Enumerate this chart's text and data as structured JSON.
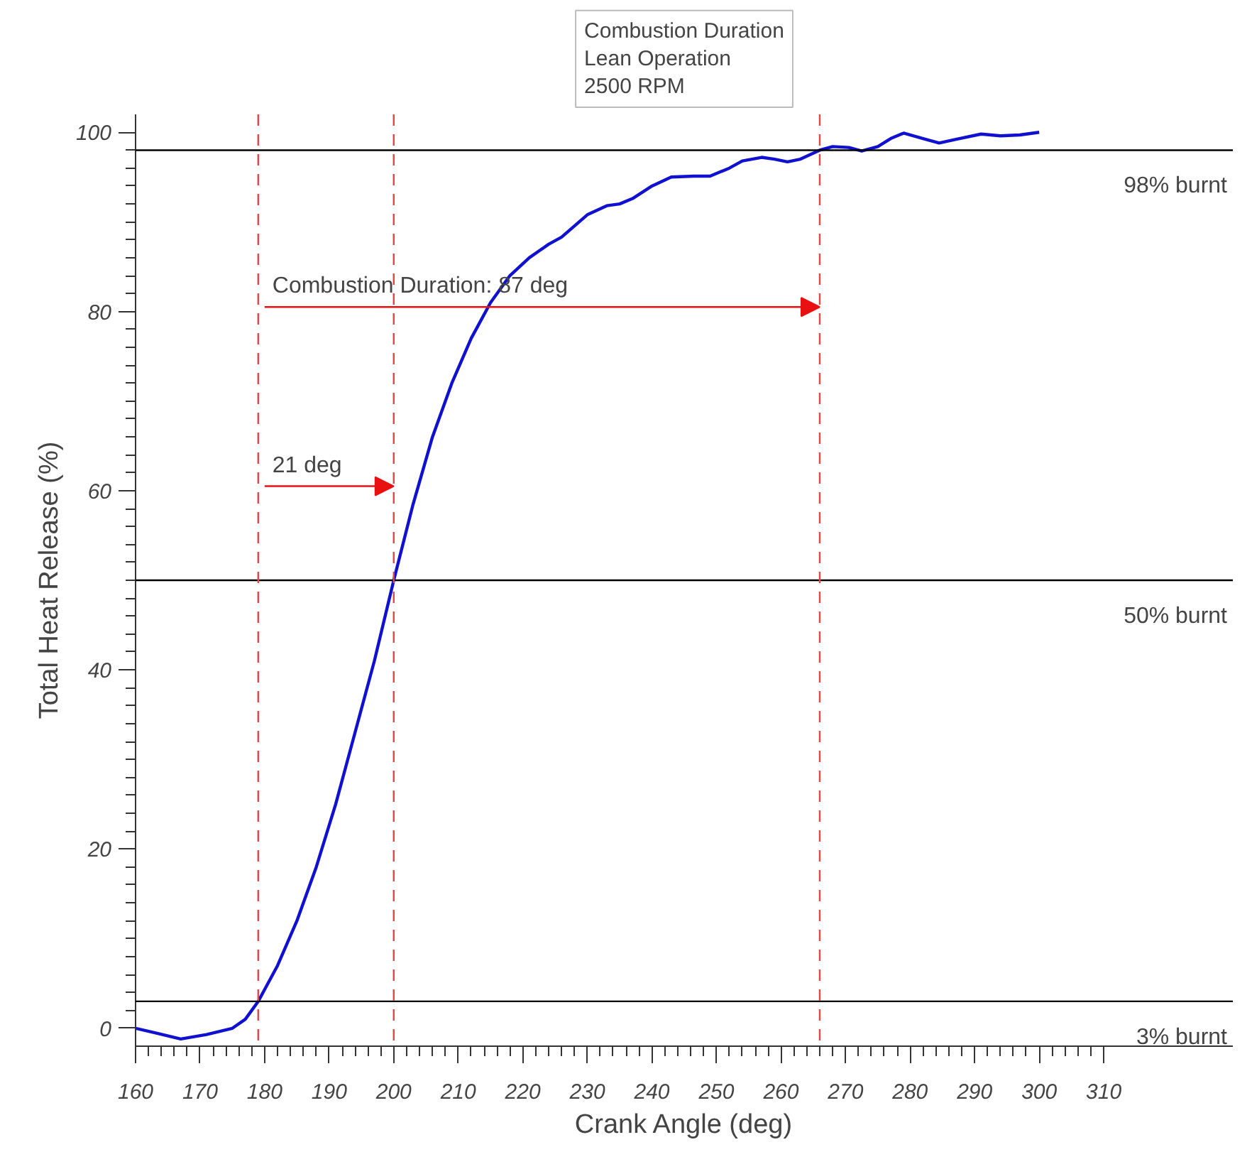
{
  "chart_data": {
    "type": "line",
    "title": "Combustion Duration\nLean Operation\n2500 RPM",
    "xlabel": "Crank Angle (deg)",
    "ylabel": "Total Heat Release (%)",
    "x": [
      160,
      163,
      167,
      171,
      175,
      177,
      179,
      182,
      185,
      188,
      191,
      194,
      197,
      200,
      203,
      206,
      209,
      212,
      215,
      218,
      221,
      224,
      226,
      230,
      233,
      235,
      237,
      240,
      243,
      246.5,
      249,
      252,
      254,
      257,
      259,
      261,
      263,
      266,
      268,
      270.5,
      272.5,
      275,
      277,
      279,
      282,
      284.5,
      287,
      291,
      294,
      297,
      300
    ],
    "series": [
      {
        "color": "#1010d0",
        "values": [
          0,
          -0.5,
          -1.2,
          -0.7,
          0,
          1,
          3,
          7,
          12,
          18,
          25,
          33,
          41,
          50,
          58.5,
          66,
          72,
          77,
          81,
          84,
          86,
          87.5,
          88.3,
          90.8,
          91.8,
          92,
          92.6,
          94,
          95,
          95.1,
          95.1,
          96,
          96.8,
          97.2,
          97,
          96.7,
          97,
          98,
          98.4,
          98.3,
          97.9,
          98.4,
          99.3,
          99.9,
          99.3,
          98.8,
          99.2,
          99.8,
          99.6,
          99.7,
          100
        ]
      }
    ],
    "xlim": [
      160,
      330
    ],
    "ylim": [
      -2,
      102
    ],
    "xticks": [
      160,
      170,
      180,
      190,
      200,
      210,
      220,
      230,
      240,
      250,
      260,
      270,
      280,
      290,
      300,
      310
    ],
    "yticks": [
      0,
      20,
      40,
      60,
      80,
      100
    ],
    "grid": false,
    "marker": "none",
    "line_style": "solid",
    "ref_lines": [
      {
        "axis": "y",
        "value": 98,
        "label": "98% burnt",
        "color": "#000000",
        "line_style": "solid"
      },
      {
        "axis": "y",
        "value": 50,
        "label": "50% burnt",
        "color": "#000000",
        "line_style": "solid"
      },
      {
        "axis": "y",
        "value": 3,
        "label": "3% burnt",
        "color": "#000000",
        "line_style": "solid"
      },
      {
        "axis": "x",
        "value": 179,
        "color": "#e04848",
        "line_style": "dashed"
      },
      {
        "axis": "x",
        "value": 200,
        "color": "#e04848",
        "line_style": "dashed"
      },
      {
        "axis": "x",
        "value": 266,
        "color": "#e04848",
        "line_style": "dashed"
      }
    ],
    "annotations": [
      {
        "text": "21 deg",
        "x": 179,
        "y": 60.5
      },
      {
        "text": "Combustion Duration: 87 deg",
        "x": 179,
        "y": 80.5
      }
    ]
  }
}
